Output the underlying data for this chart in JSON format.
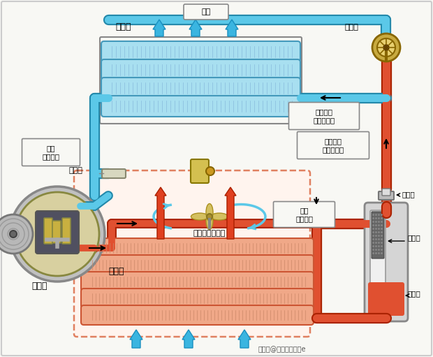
{
  "bg_color": "#f8f8f4",
  "blue_pipe": "#5bc8e8",
  "blue_pipe_dark": "#2288aa",
  "red_pipe": "#e05030",
  "red_pipe_dark": "#aa2200",
  "evap_fill": "#a8dff0",
  "evap_edge": "#4499bb",
  "cond_fill": "#f0a888",
  "cond_edge": "#cc5533",
  "blue_arrow": "#3ab5e0",
  "red_arrow": "#e04020",
  "fan_color": "#d4c060",
  "comp_outer": "#c8c8c8",
  "comp_inner": "#b8a840",
  "comp_dark": "#606060",
  "valve_color": "#c8aa40",
  "valve_light": "#e8d070",
  "box_edge": "#888888",
  "dashed_box_edge": "#e08060",
  "dashed_box_fill": "#fff4ee",
  "label_box_fill": "#f8f8f4",
  "recv_bg": "#d8d8d8",
  "recv_inner_bg": "#f0f0f0",
  "desiccant": "#666666",
  "sight_color": "#aaaaaa",
  "pipe_lw": 7,
  "labels": {
    "evaporator": "蒸发器",
    "cold_air": "冷风",
    "expansion_valve": "膨胀阀",
    "low_temp_mist": "低温低压\n雾状制冷剂",
    "temp_sensor": "感温筒",
    "low_temp_gas": "低温\n低压气体",
    "compressor": "压缩机",
    "engine_fan": "发动机冷却风扇",
    "condenser": "冷凝器",
    "high_temp_liquid": "高温高压\n液态制冷剂",
    "sight_glass": "观察窗",
    "high_temp_gas": "高温\n高压气体",
    "dryer": "干燥剂",
    "receiver": "储液罐",
    "watermark": "搜狐号@腾龙智能电商e"
  }
}
